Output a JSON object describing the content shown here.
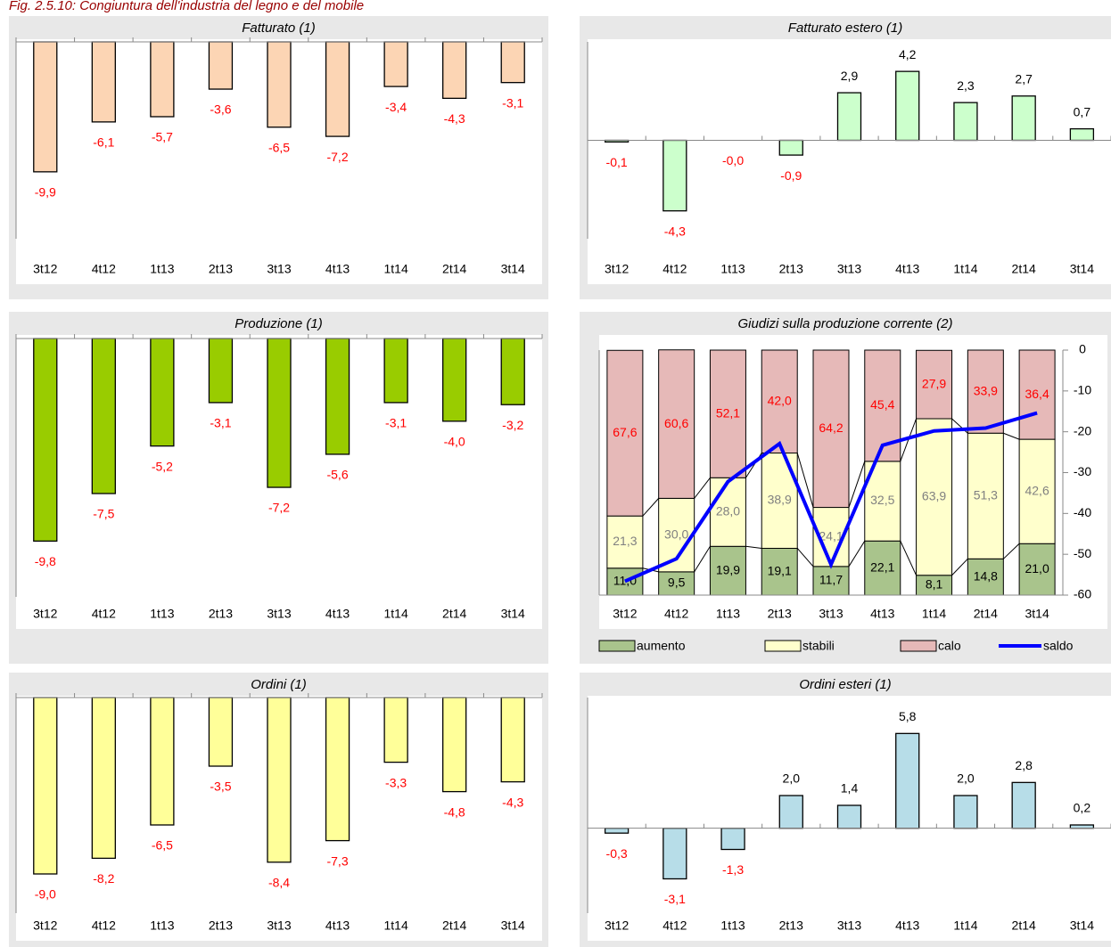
{
  "header": {
    "title": "Fig. 2.5.10: Congiuntura dell'industria del legno e del mobile"
  },
  "chart_data": [
    {
      "type": "bar",
      "title": "Fatturato (1)",
      "categories": [
        "3t12",
        "4t12",
        "1t13",
        "2t13",
        "3t13",
        "4t13",
        "1t14",
        "2t14",
        "3t14"
      ],
      "values": [
        -9.9,
        -6.1,
        -5.7,
        -3.6,
        -6.5,
        -7.2,
        -3.4,
        -4.3,
        -3.1
      ],
      "value_labels": [
        "-9,9",
        "-6,1",
        "-5,7",
        "-3,6",
        "-6,5",
        "-7,2",
        "-3,4",
        "-4,3",
        "-3,1"
      ],
      "color": "#fcd5b4",
      "ylim": [
        -15,
        0
      ],
      "label_colors": {
        "negative": "#ff0000",
        "positive": "#000000"
      }
    },
    {
      "type": "bar",
      "title": "Fatturato estero (1)",
      "categories": [
        "3t12",
        "4t12",
        "1t13",
        "2t13",
        "3t13",
        "4t13",
        "1t14",
        "2t14",
        "3t14"
      ],
      "values": [
        -0.1,
        -4.3,
        -0.0,
        -0.9,
        2.9,
        4.2,
        2.3,
        2.7,
        0.7
      ],
      "value_labels": [
        "-0,1",
        "-4,3",
        "-0,0",
        "-0,9",
        "2,9",
        "4,2",
        "2,3",
        "2,7",
        "0,7"
      ],
      "color": "#ccffcc",
      "ylim": [
        -6,
        6
      ],
      "label_colors": {
        "negative": "#ff0000",
        "positive": "#000000"
      }
    },
    {
      "type": "bar",
      "title": "Produzione (1)",
      "categories": [
        "3t12",
        "4t12",
        "1t13",
        "2t13",
        "3t13",
        "4t13",
        "1t14",
        "2t14",
        "3t14"
      ],
      "values": [
        -9.8,
        -7.5,
        -5.2,
        -3.1,
        -7.2,
        -5.6,
        -3.1,
        -4.0,
        -3.2
      ],
      "value_labels": [
        "-9,8",
        "-7,5",
        "-5,2",
        "-3,1",
        "-7,2",
        "-5,6",
        "-3,1",
        "-4,0",
        "-3,2"
      ],
      "color": "#99cc00",
      "ylim": [
        -12.5,
        0
      ],
      "label_colors": {
        "negative": "#ff0000",
        "positive": "#000000"
      }
    },
    {
      "type": "stacked_bar_line",
      "title": "Giudizi sulla produzione corrente (2)",
      "categories": [
        "3t12",
        "4t12",
        "1t13",
        "2t13",
        "3t13",
        "4t13",
        "1t14",
        "2t14",
        "3t14"
      ],
      "series": [
        {
          "name": "aumento",
          "color": "#a9c48c",
          "label_color": "#000000",
          "values": [
            11.0,
            9.5,
            19.9,
            19.1,
            11.7,
            22.1,
            8.1,
            14.8,
            21.0
          ],
          "value_labels": [
            "11,0",
            "9,5",
            "19,9",
            "19,1",
            "11,7",
            "22,1",
            "8,1",
            "14,8",
            "21,0"
          ]
        },
        {
          "name": "stabili",
          "color": "#ffffcc",
          "label_color": "#808080",
          "values": [
            21.3,
            30.0,
            28.0,
            38.9,
            24.1,
            32.5,
            63.9,
            51.3,
            42.6
          ],
          "value_labels": [
            "21,3",
            "30,0",
            "28,0",
            "38,9",
            "24,1",
            "32,5",
            "63,9",
            "51,3",
            "42,6"
          ]
        },
        {
          "name": "calo",
          "color": "#e6b9b8",
          "label_color": "#ff0000",
          "values": [
            67.6,
            60.6,
            52.1,
            42.0,
            64.2,
            45.4,
            27.9,
            33.9,
            36.4
          ],
          "value_labels": [
            "67,6",
            "60,6",
            "52,1",
            "42,0",
            "64,2",
            "45,4",
            "27,9",
            "33,9",
            "36,4"
          ]
        },
        {
          "name": "saldo",
          "color": "#0000ff",
          "axis": "y2",
          "values": [
            -56.6,
            -51.1,
            -32.2,
            -22.9,
            -52.5,
            -23.3,
            -19.8,
            -19.1,
            -15.4
          ]
        }
      ],
      "ylim": [
        0,
        100
      ],
      "y2lim": [
        -60,
        0
      ],
      "y2ticks": [
        0,
        -10,
        -20,
        -30,
        -40,
        -50,
        -60
      ],
      "legend": "bottom"
    },
    {
      "type": "bar",
      "title": "Ordini (1)",
      "categories": [
        "3t12",
        "4t12",
        "1t13",
        "2t13",
        "3t13",
        "4t13",
        "1t14",
        "2t14",
        "3t14"
      ],
      "values": [
        -9.0,
        -8.2,
        -6.5,
        -3.5,
        -8.4,
        -7.3,
        -3.3,
        -4.8,
        -4.3
      ],
      "value_labels": [
        "-9,0",
        "-8,2",
        "-6,5",
        "-3,5",
        "-8,4",
        "-7,3",
        "-3,3",
        "-4,8",
        "-4,3"
      ],
      "color": "#ffff99",
      "ylim": [
        -11,
        0
      ],
      "label_colors": {
        "negative": "#ff0000",
        "positive": "#000000"
      }
    },
    {
      "type": "bar",
      "title": "Ordini esteri (1)",
      "categories": [
        "3t12",
        "4t12",
        "1t13",
        "2t13",
        "3t13",
        "4t13",
        "1t14",
        "2t14",
        "3t14"
      ],
      "values": [
        -0.3,
        -3.1,
        -1.3,
        2.0,
        1.4,
        5.8,
        2.0,
        2.8,
        0.2
      ],
      "value_labels": [
        "-0,3",
        "-3,1",
        "-1,3",
        "2,0",
        "1,4",
        "5,8",
        "2,0",
        "2,8",
        "0,2"
      ],
      "color": "#b7dde8",
      "ylim": [
        -5.2,
        8
      ],
      "label_colors": {
        "negative": "#ff0000",
        "positive": "#000000"
      }
    }
  ]
}
